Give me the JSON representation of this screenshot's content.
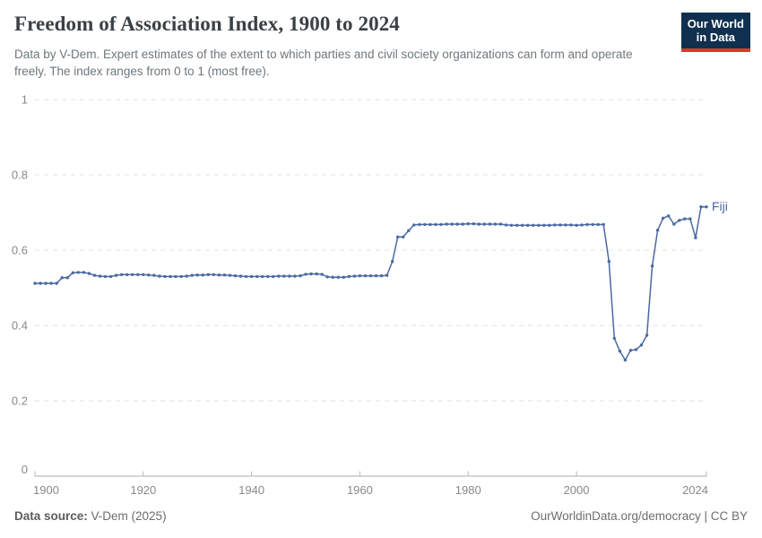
{
  "header": {
    "title": "Freedom of Association Index, 1900 to 2024",
    "subtitle": "Data by V-Dem. Expert estimates of the extent to which parties and civil society organizations can form and operate freely. The index ranges from 0 to 1 (most free).",
    "logo": {
      "line1": "Our World",
      "line2": "in Data",
      "bg_color": "#10304f",
      "accent_color": "#d93a2c"
    }
  },
  "chart_data": {
    "type": "line",
    "title": "Freedom of Association Index, 1900 to 2024",
    "xlabel": "",
    "ylabel": "",
    "xlim": [
      1900,
      2024
    ],
    "ylim": [
      0,
      1
    ],
    "x_ticks": [
      1900,
      1920,
      1940,
      1960,
      1980,
      2000,
      2024
    ],
    "y_ticks": [
      0,
      0.2,
      0.4,
      0.6,
      0.8,
      1
    ],
    "grid": "horizontal-dashed",
    "legend_position": "end-of-line-label",
    "series": [
      {
        "name": "Fiji",
        "color": "#4a69a2",
        "x_start": 1900,
        "x_step": 1,
        "values": [
          0.512,
          0.512,
          0.512,
          0.512,
          0.512,
          0.527,
          0.527,
          0.54,
          0.541,
          0.541,
          0.538,
          0.533,
          0.531,
          0.53,
          0.53,
          0.533,
          0.535,
          0.535,
          0.535,
          0.535,
          0.535,
          0.534,
          0.533,
          0.531,
          0.53,
          0.53,
          0.53,
          0.53,
          0.531,
          0.533,
          0.534,
          0.534,
          0.535,
          0.535,
          0.534,
          0.534,
          0.533,
          0.532,
          0.531,
          0.53,
          0.53,
          0.53,
          0.53,
          0.53,
          0.53,
          0.531,
          0.531,
          0.531,
          0.531,
          0.532,
          0.536,
          0.537,
          0.537,
          0.536,
          0.529,
          0.528,
          0.528,
          0.528,
          0.53,
          0.531,
          0.532,
          0.532,
          0.532,
          0.532,
          0.532,
          0.533,
          0.57,
          0.635,
          0.635,
          0.652,
          0.667,
          0.668,
          0.668,
          0.668,
          0.668,
          0.668,
          0.669,
          0.669,
          0.669,
          0.669,
          0.67,
          0.67,
          0.669,
          0.669,
          0.669,
          0.669,
          0.669,
          0.667,
          0.666,
          0.666,
          0.666,
          0.666,
          0.666,
          0.666,
          0.666,
          0.666,
          0.667,
          0.667,
          0.667,
          0.667,
          0.666,
          0.667,
          0.668,
          0.668,
          0.668,
          0.668,
          0.57,
          0.366,
          0.332,
          0.308,
          0.334,
          0.336,
          0.348,
          0.374,
          0.558,
          0.653,
          0.685,
          0.691,
          0.669,
          0.679,
          0.683,
          0.683,
          0.633,
          0.715,
          0.715
        ]
      }
    ]
  },
  "footer": {
    "source_label": "Data source:",
    "source_value": " V-Dem (2025)",
    "credit": "OurWorldinData.org/democracy | CC BY"
  }
}
